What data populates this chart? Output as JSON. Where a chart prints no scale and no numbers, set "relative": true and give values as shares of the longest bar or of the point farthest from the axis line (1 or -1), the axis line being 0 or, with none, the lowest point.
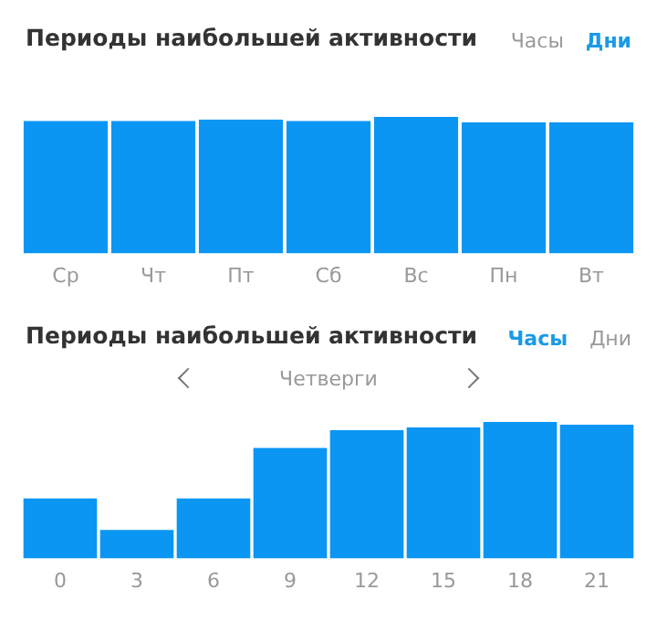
{
  "chart_data": [
    {
      "type": "bar",
      "title": "Периоды наибольшей активности",
      "annotations": [
        "Часы",
        "Дни"
      ],
      "relative": true,
      "categories": [
        "Ср",
        "Чт",
        "Пт",
        "Сб",
        "Вс",
        "Пн",
        "Вт"
      ],
      "values": [
        0.97,
        0.97,
        0.98,
        0.97,
        1,
        0.96,
        0.96
      ],
      "color": "#0b96f3",
      "grid": false,
      "legend": false
    },
    {
      "type": "bar",
      "title": "Периоды наибольшей активности",
      "annotations": [
        "Часы",
        "Дни",
        "Четверги"
      ],
      "relative": true,
      "categories": [
        "0",
        "3",
        "6",
        "9",
        "12",
        "15",
        "18",
        "21"
      ],
      "values": [
        0.44,
        0.21,
        0.44,
        0.81,
        0.94,
        0.96,
        1,
        0.98
      ],
      "color": "#0b96f3",
      "grid": false,
      "legend": false
    }
  ]
}
